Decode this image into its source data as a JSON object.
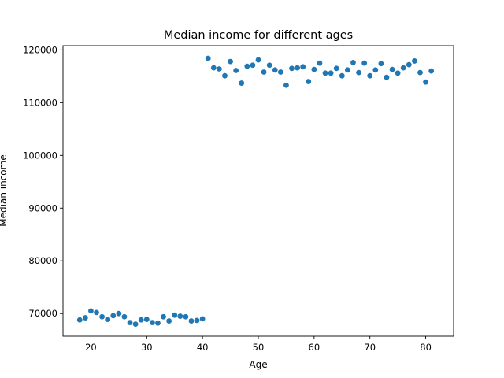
{
  "chart_data": {
    "type": "scatter",
    "title": "Median income for different ages",
    "xlabel": "Age",
    "ylabel": "Median income",
    "xlim": [
      15,
      85
    ],
    "ylim": [
      65700,
      120800
    ],
    "xticks": [
      20,
      30,
      40,
      50,
      60,
      70,
      80
    ],
    "yticks": [
      70000,
      80000,
      90000,
      100000,
      110000,
      120000
    ],
    "grid": false,
    "marker_color": "#1f77b4",
    "series": [
      {
        "x": [
          18,
          19,
          20,
          21,
          22,
          23,
          24,
          25,
          26,
          27,
          28,
          29,
          30,
          31,
          32,
          33,
          34,
          35,
          36,
          37,
          38,
          39,
          40,
          41,
          42,
          43,
          44,
          45,
          46,
          47,
          48,
          49,
          50,
          51,
          52,
          53,
          54,
          55,
          56,
          57,
          58,
          59,
          60,
          61,
          62,
          63,
          64,
          65,
          66,
          67,
          68,
          69,
          70,
          71,
          72,
          73,
          74,
          75,
          76,
          77,
          78,
          79,
          80,
          81
        ],
        "y": [
          68800,
          69200,
          70500,
          70200,
          69400,
          68900,
          69600,
          70000,
          69400,
          68300,
          68000,
          68800,
          68900,
          68300,
          68200,
          69400,
          68600,
          69700,
          69500,
          69400,
          68600,
          68700,
          69000,
          118400,
          116600,
          116400,
          115100,
          117800,
          116100,
          113700,
          116900,
          117100,
          118100,
          115800,
          117100,
          116200,
          115800,
          113300,
          116500,
          116600,
          116800,
          114000,
          116300,
          117500,
          115600,
          115600,
          116500,
          115100,
          116200,
          117600,
          115700,
          117500,
          115100,
          116200,
          117400,
          114800,
          116300,
          115600,
          116600,
          117200,
          117900,
          115700,
          113900,
          116000
        ]
      }
    ]
  }
}
